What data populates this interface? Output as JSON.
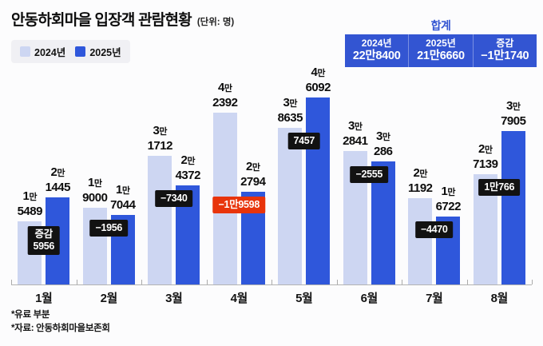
{
  "title": "안동하회마을 입장객 관람현황",
  "unit": "(단위: 명)",
  "legend": {
    "y2024": "2024년",
    "y2025": "2025년"
  },
  "summary": {
    "title": "합계",
    "cols": [
      {
        "label": "2024년",
        "value": "22만8400"
      },
      {
        "label": "2025년",
        "value": "21만6660"
      },
      {
        "label": "증감",
        "value": "−1만1740"
      }
    ]
  },
  "footnotes": {
    "line1": "*유료 부분",
    "line2": "*자료: 안동하회마을보존회"
  },
  "colors": {
    "bar2024": "#cdd6f2",
    "bar2025": "#2f57db",
    "badgeBlack": "#121212",
    "badgeRed": "#e8340b",
    "summaryBox": "#3355d2",
    "accentBlue": "#3355d2"
  },
  "chart_data": {
    "type": "bar",
    "title": "안동하회마을 입장객 관람현황",
    "unit": "명",
    "categories": [
      "1월",
      "2월",
      "3월",
      "4월",
      "5월",
      "6월",
      "7월",
      "8월"
    ],
    "series": [
      {
        "name": "2024년",
        "values": [
          15489,
          19000,
          31712,
          42392,
          38635,
          32841,
          21192,
          27139
        ]
      },
      {
        "name": "2025년",
        "values": [
          21445,
          17044,
          24372,
          22794,
          46092,
          30286,
          16722,
          37905
        ]
      }
    ],
    "diffs": [
      {
        "lines": [
          "증감",
          "5956"
        ],
        "alert": false
      },
      {
        "lines": [
          "−1956"
        ],
        "alert": false
      },
      {
        "lines": [
          "−7340"
        ],
        "alert": false
      },
      {
        "lines": [
          "−1만9598"
        ],
        "alert": true
      },
      {
        "lines": [
          "7457"
        ],
        "alert": false
      },
      {
        "lines": [
          "−2555"
        ],
        "alert": false
      },
      {
        "lines": [
          "−4470"
        ],
        "alert": false
      },
      {
        "lines": [
          "1만766"
        ],
        "alert": false
      }
    ],
    "totals": {
      "y2024": 228400,
      "y2025": 216660,
      "diff": -11740
    },
    "ylim": [
      0,
      46092
    ],
    "grid": false,
    "legend_position": "top-left"
  }
}
